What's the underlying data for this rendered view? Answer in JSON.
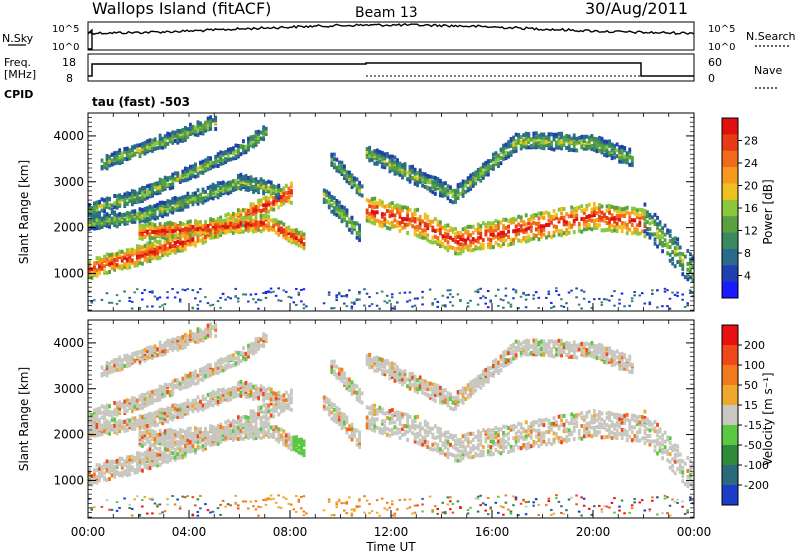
{
  "header": {
    "station": "Wallops Island (fitACF)",
    "beam": "Beam 13",
    "date": "30/Aug/2011"
  },
  "nsky_panel": {
    "left_label": "N.Sky",
    "right_label": "N.Search",
    "left_ticks": [
      "10^5",
      "10^0"
    ],
    "right_ticks": [
      "10^5",
      "10^0"
    ]
  },
  "freq_panel": {
    "left_label_lines": [
      "Freq.",
      "[MHz]"
    ],
    "right_label": "Nave",
    "left_ticks": [
      "18",
      "8"
    ],
    "right_ticks": [
      "60",
      "0"
    ],
    "cpid_label": "CPID",
    "cpid_text": "tau (fast) -503"
  },
  "x_axis": {
    "label": "Time UT",
    "ticks": [
      "00:00",
      "04:00",
      "08:00",
      "12:00",
      "16:00",
      "20:00",
      "00:00"
    ]
  },
  "chart_data": [
    {
      "type": "heatmap",
      "name": "power",
      "ylabel": "Slant Range [km]",
      "y_ticks": [
        1000,
        2000,
        3000,
        4000
      ],
      "ylim": [
        180,
        4500
      ],
      "xlim_hours": [
        0,
        24
      ],
      "colorbar": {
        "label": "Power [dB]",
        "ticks": [
          "4",
          "8",
          "12",
          "16",
          "20",
          "24",
          "28"
        ],
        "colors": [
          "#1a1aff",
          "#2040b0",
          "#2a6a8a",
          "#3a8a60",
          "#5aa040",
          "#8cc83c",
          "#f0c020",
          "#f59a1c",
          "#f06a1c",
          "#e83a14",
          "#e01010"
        ]
      }
    },
    {
      "type": "heatmap",
      "name": "velocity",
      "ylabel": "Slant Range [km]",
      "y_ticks": [
        1000,
        2000,
        3000,
        4000
      ],
      "ylim": [
        180,
        4500
      ],
      "xlim_hours": [
        0,
        24
      ],
      "colorbar": {
        "label": "Velocity [m s⁻¹]",
        "ticks": [
          "200",
          "100",
          "50",
          "15",
          "-15",
          "-50",
          "-100",
          "-200"
        ],
        "colors": [
          "#1a3cc8",
          "#2a6a7a",
          "#2f8a3a",
          "#5ac840",
          "#c8c8c0",
          "#f0a82c",
          "#f07a1c",
          "#f04818",
          "#e81010"
        ]
      }
    }
  ]
}
